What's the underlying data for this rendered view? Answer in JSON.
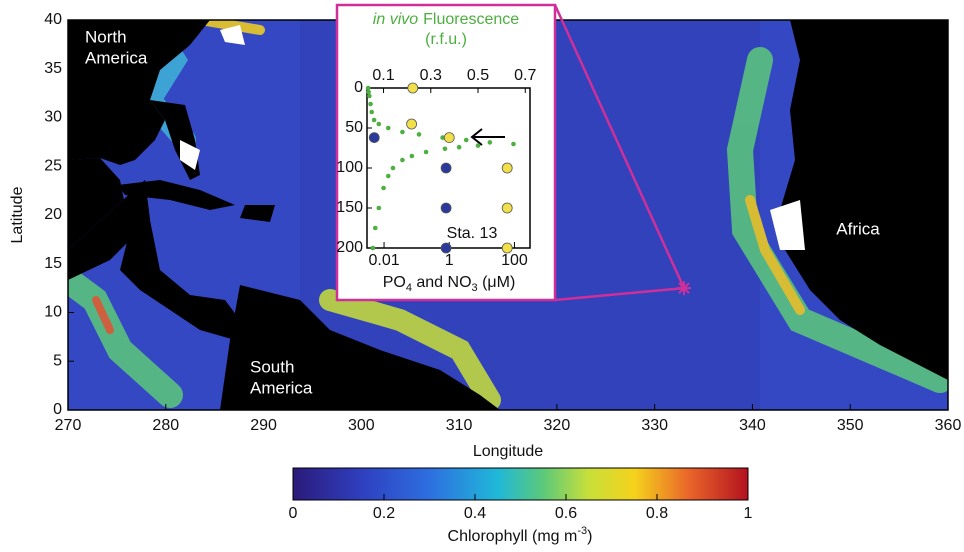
{
  "map": {
    "xlabel": "Longitude",
    "ylabel": "Latitude",
    "xlim": [
      270,
      360
    ],
    "ylim": [
      0,
      40
    ],
    "xticks": [
      270,
      280,
      290,
      300,
      310,
      320,
      330,
      340,
      350,
      360
    ],
    "yticks": [
      0,
      5,
      10,
      15,
      20,
      25,
      30,
      35,
      40
    ],
    "regions": [
      [
        "North",
        "America"
      ],
      [
        "South",
        "America"
      ],
      [
        "Africa"
      ]
    ],
    "station": {
      "lon": 333,
      "lat": 12.5,
      "color": "#d02f9a"
    }
  },
  "colorbar": {
    "label_parts": [
      "Chlorophyll (mg m",
      "-3",
      ")"
    ],
    "lim": [
      0,
      1
    ],
    "ticks": [
      0,
      0.2,
      0.4,
      0.6,
      0.8,
      1
    ]
  },
  "inset": {
    "title_italic": "in vivo",
    "title": "Fluorescence",
    "top_units": "(r.f.u.)",
    "top_lim": [
      0.03,
      0.72
    ],
    "top_ticks": [
      0.1,
      0.3,
      0.5,
      0.7
    ],
    "depth_lim": [
      0,
      200
    ],
    "depth_ticks": [
      0,
      50,
      100,
      150,
      200
    ],
    "xlabel_parts": [
      "PO",
      "4",
      " and NO",
      "3",
      " (μM)"
    ],
    "x_log": true,
    "xlim": [
      0.003,
      300
    ],
    "xticks": [
      0.01,
      1,
      100
    ],
    "station_label": "Sta. 13",
    "fluorescence": {
      "color": "#4caf3f",
      "depth": [
        0,
        5,
        10,
        20,
        30,
        40,
        45,
        50,
        55,
        58,
        62,
        65,
        68,
        70,
        72,
        74,
        76,
        80,
        85,
        90,
        100,
        110,
        125,
        150,
        175,
        200
      ],
      "values": [
        0.035,
        0.037,
        0.04,
        0.045,
        0.05,
        0.06,
        0.08,
        0.12,
        0.18,
        0.25,
        0.35,
        0.45,
        0.55,
        0.65,
        0.5,
        0.42,
        0.36,
        0.28,
        0.22,
        0.18,
        0.14,
        0.12,
        0.1,
        0.08,
        0.065,
        0.055
      ]
    },
    "po4": {
      "color": "#2a3a9c",
      "depth": [
        62,
        100,
        150,
        200
      ],
      "values": [
        0.005,
        0.8,
        0.8,
        0.8
      ]
    },
    "no3": {
      "color": "#f2e04a",
      "depth": [
        0,
        45,
        62,
        100,
        150,
        200
      ],
      "values": [
        0.076,
        0.07,
        1,
        60,
        60,
        60
      ]
    }
  }
}
